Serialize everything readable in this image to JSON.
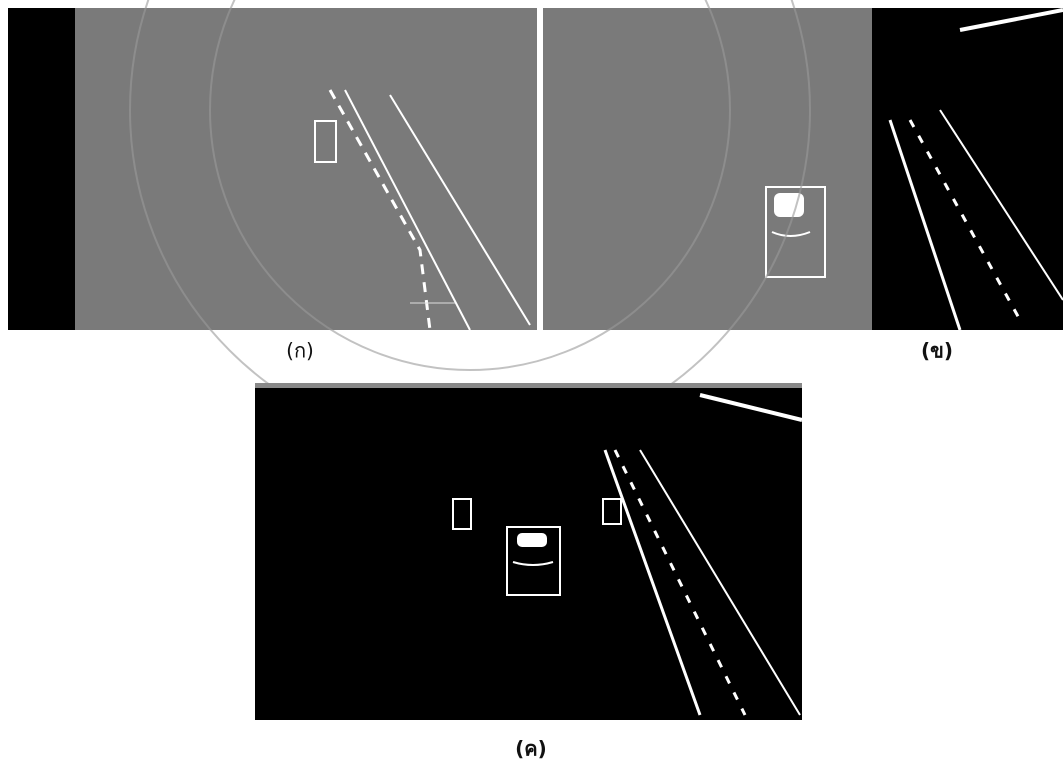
{
  "figure": {
    "captions": [
      "(ก)",
      "(ข)",
      "(ค)"
    ]
  }
}
